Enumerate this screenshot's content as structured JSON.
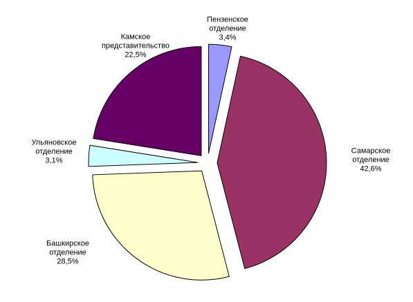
{
  "chart_data": {
    "type": "pie",
    "categories": [
      "Пензенское отделение",
      "Самарское отделение",
      "Башкирское отделение",
      "Ульяновское отделение",
      "Камское представительство"
    ],
    "values": [
      3.4,
      42.6,
      28.5,
      3.1,
      22.5
    ],
    "value_labels": [
      "3,4%",
      "42,6%",
      "28,5%",
      "3,1%",
      "22,5%"
    ],
    "colors": [
      "#9999ff",
      "#993366",
      "#ffffcc",
      "#ccffff",
      "#660066"
    ]
  }
}
